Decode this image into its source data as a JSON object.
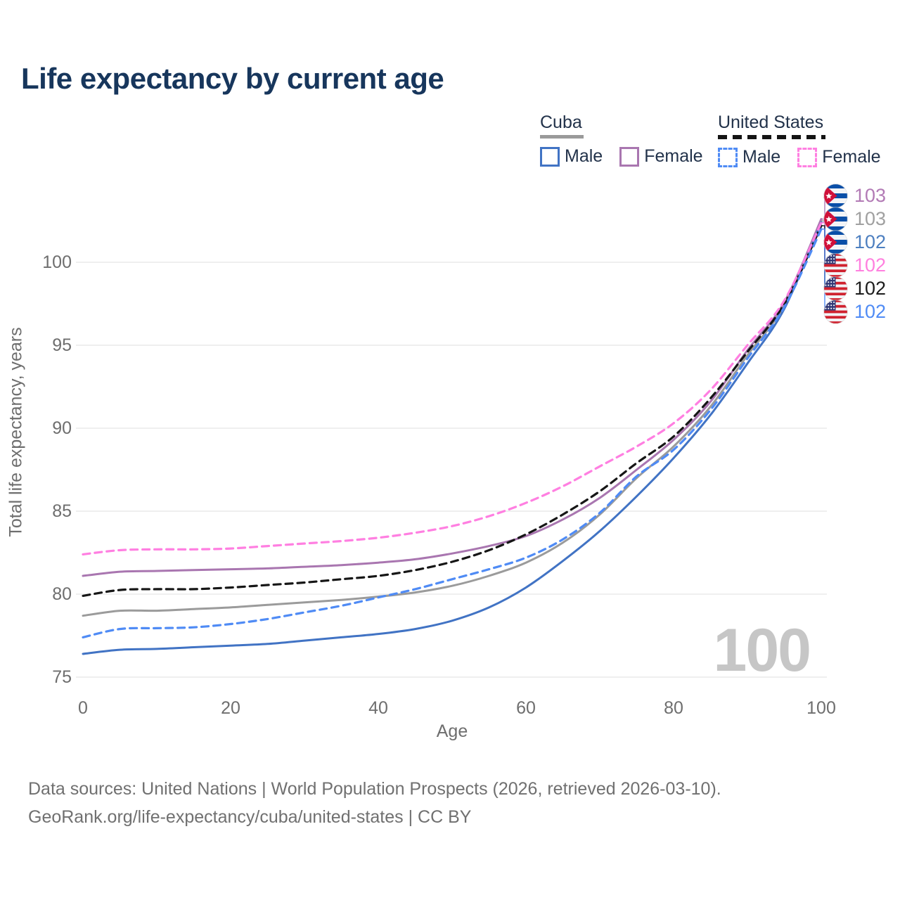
{
  "title": "Life expectancy by current age",
  "legend": {
    "groups": [
      {
        "label": "Cuba",
        "line_style": "solid",
        "line_color": "#9a9a9a",
        "items": [
          {
            "label": "Male",
            "color": "#4173c4",
            "dashed": false
          },
          {
            "label": "Female",
            "color": "#a976b0",
            "dashed": false
          }
        ]
      },
      {
        "label": "United States",
        "line_style": "dashed",
        "line_color": "#141414",
        "items": [
          {
            "label": "Male",
            "color": "#4f8bf5",
            "dashed": true
          },
          {
            "label": "Female",
            "color": "#ff7fe1",
            "dashed": true
          }
        ]
      }
    ]
  },
  "axes": {
    "y_title": "Total life expectancy, years",
    "x_title": "Age",
    "y_ticks": [
      75,
      80,
      85,
      90,
      95,
      100
    ],
    "x_ticks": [
      0,
      20,
      40,
      60,
      80,
      100
    ]
  },
  "watermark": "100",
  "end_labels": [
    {
      "text": "103",
      "flag": "cuba",
      "color": "#b27ab5",
      "series": "Cuba Female"
    },
    {
      "text": "103",
      "flag": "cuba",
      "color": "#a0a0a0",
      "series": "Cuba Both sexes"
    },
    {
      "text": "102",
      "flag": "cuba",
      "color": "#4d7fc0",
      "series": "Cuba Male"
    },
    {
      "text": "102",
      "flag": "us",
      "color": "#ff80df",
      "series": "United States Female"
    },
    {
      "text": "102",
      "flag": "us",
      "color": "#1c1c1c",
      "series": "United States Both sexes"
    },
    {
      "text": "102",
      "flag": "us",
      "color": "#4f8bf5",
      "series": "United States Male"
    }
  ],
  "footer": {
    "line1": "Data sources: United Nations | World Population Prospects (2026, retrieved 2026-03-10).",
    "line2": "GeoRank.org/life-expectancy/cuba/united-states | CC BY"
  },
  "chart_data": {
    "type": "line",
    "title": "Life expectancy by current age",
    "xlabel": "Age",
    "ylabel": "Total life expectancy, years",
    "xlim": [
      0,
      100
    ],
    "ylim": [
      74,
      104
    ],
    "grid": "horizontal",
    "legend_position": "top-right",
    "x": [
      0,
      5,
      10,
      15,
      20,
      25,
      30,
      35,
      40,
      45,
      50,
      55,
      60,
      65,
      70,
      75,
      80,
      85,
      90,
      95,
      100
    ],
    "series": [
      {
        "name": "Cuba Male",
        "color": "#4173c4",
        "dashed": false,
        "values": [
          76.4,
          76.65,
          76.7,
          76.8,
          76.9,
          77.0,
          77.2,
          77.4,
          77.6,
          77.9,
          78.4,
          79.2,
          80.4,
          82.0,
          83.8,
          85.9,
          88.2,
          90.8,
          93.9,
          97.2,
          102.4
        ]
      },
      {
        "name": "Cuba Female",
        "color": "#a976b0",
        "dashed": false,
        "values": [
          81.1,
          81.35,
          81.4,
          81.45,
          81.5,
          81.55,
          81.65,
          81.75,
          81.9,
          82.1,
          82.45,
          82.9,
          83.5,
          84.5,
          85.8,
          87.5,
          89.3,
          91.6,
          94.7,
          97.6,
          102.6
        ]
      },
      {
        "name": "Cuba Both sexes",
        "color": "#9b9b9b",
        "dashed": false,
        "values": [
          78.7,
          79.0,
          79.0,
          79.1,
          79.2,
          79.35,
          79.5,
          79.65,
          79.85,
          80.1,
          80.5,
          81.1,
          81.9,
          83.1,
          84.8,
          87.0,
          88.9,
          91.3,
          94.4,
          97.4,
          102.5
        ]
      },
      {
        "name": "United States Both sexes",
        "color": "#161616",
        "dashed": true,
        "values": [
          79.9,
          80.25,
          80.3,
          80.3,
          80.4,
          80.55,
          80.7,
          80.9,
          81.1,
          81.45,
          81.95,
          82.65,
          83.6,
          84.8,
          86.2,
          87.9,
          89.5,
          91.8,
          94.6,
          97.5,
          102.2
        ]
      },
      {
        "name": "United States Male",
        "color": "#4f8bf5",
        "dashed": true,
        "values": [
          77.4,
          77.9,
          77.95,
          78.0,
          78.2,
          78.5,
          78.9,
          79.3,
          79.8,
          80.3,
          80.9,
          81.5,
          82.2,
          83.3,
          84.9,
          87.1,
          88.7,
          91.1,
          94.2,
          97.3,
          102.0
        ]
      },
      {
        "name": "United States Female",
        "color": "#ff7fe1",
        "dashed": true,
        "values": [
          82.4,
          82.65,
          82.7,
          82.7,
          82.75,
          82.9,
          83.05,
          83.2,
          83.4,
          83.7,
          84.1,
          84.7,
          85.5,
          86.5,
          87.7,
          88.9,
          90.3,
          92.3,
          95.0,
          97.7,
          102.38
        ]
      }
    ]
  }
}
